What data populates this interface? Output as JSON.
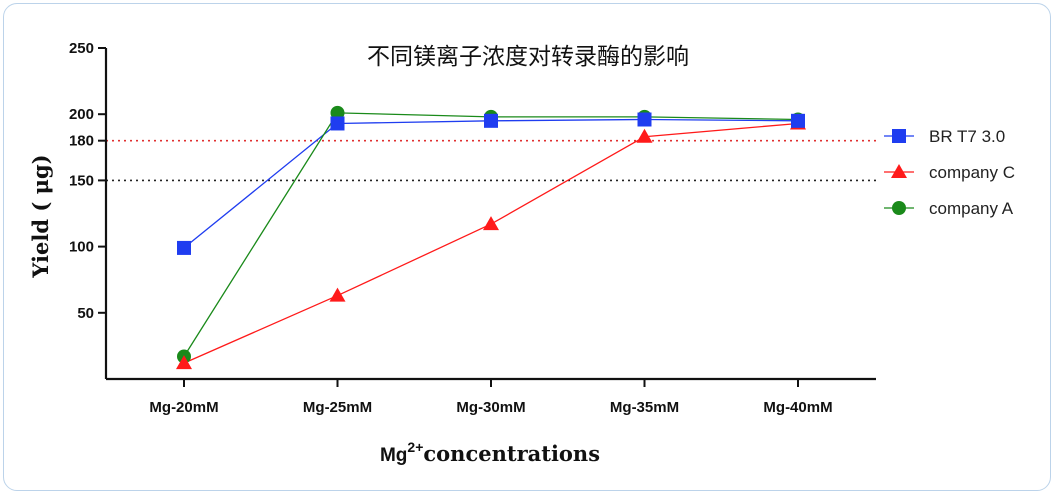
{
  "chart_data": {
    "type": "line",
    "title": "不同镁离子浓度对转录酶的影响",
    "xlabel": {
      "prefix": "Mg",
      "superscript": "2+",
      "suffix": "concentrations"
    },
    "ylabel": "Yield ( μg)",
    "categories": [
      "Mg-20mM",
      "Mg-25mM",
      "Mg-30mM",
      "Mg-35mM",
      "Mg-40mM"
    ],
    "ylim": [
      0,
      250
    ],
    "yticks": [
      50,
      100,
      150,
      180,
      200,
      250
    ],
    "reference_lines": [
      {
        "y": 180,
        "color": "#e03030",
        "style": "dotted"
      },
      {
        "y": 150,
        "color": "#222222",
        "style": "dotted"
      }
    ],
    "series": [
      {
        "name": "BR T7 3.0",
        "color": "#1f3df0",
        "marker": "square",
        "values": [
          99,
          193,
          195,
          196,
          195
        ]
      },
      {
        "name": "company C",
        "color": "#ff1a1a",
        "marker": "triangle",
        "values": [
          12,
          63,
          117,
          183,
          193
        ]
      },
      {
        "name": "company A",
        "color": "#1a8a1a",
        "marker": "circle",
        "values": [
          17,
          201,
          198,
          198,
          196
        ]
      }
    ],
    "legend_position": "right",
    "grid": false
  }
}
